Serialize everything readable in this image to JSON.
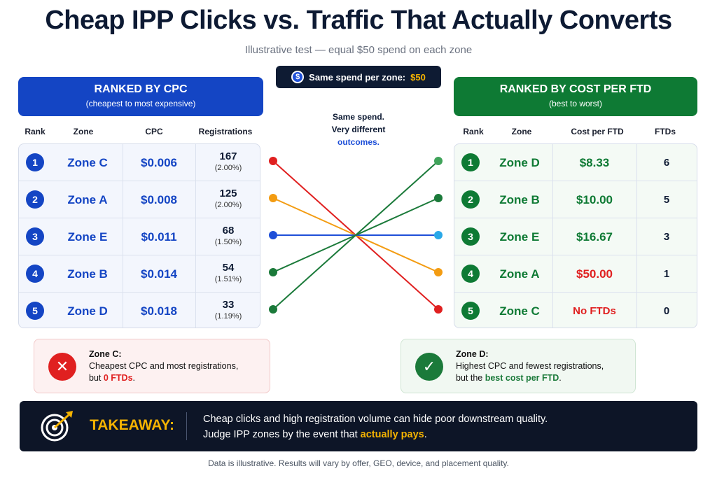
{
  "header": {
    "title": "Cheap IPP Clicks vs. Traffic That Actually Converts",
    "subtitle": "Illustrative test — equal $50 spend on each zone"
  },
  "spend_pill": {
    "label": "Same spend per zone:",
    "amount": "$50",
    "icon": "dollar-icon"
  },
  "middle_note": {
    "line1": "Same spend.",
    "line2": "Very different",
    "line3": "outcomes."
  },
  "left_panel": {
    "title": "RANKED BY CPC",
    "subtitle": "(cheapest to most expensive)",
    "columns": [
      "Rank",
      "Zone",
      "CPC",
      "Registrations"
    ],
    "rows": [
      {
        "rank": "1",
        "zone": "Zone C",
        "cpc": "$0.006",
        "regs": "167",
        "pct": "(2.00%)"
      },
      {
        "rank": "2",
        "zone": "Zone A",
        "cpc": "$0.008",
        "regs": "125",
        "pct": "(2.00%)"
      },
      {
        "rank": "3",
        "zone": "Zone E",
        "cpc": "$0.011",
        "regs": "68",
        "pct": "(1.50%)"
      },
      {
        "rank": "4",
        "zone": "Zone B",
        "cpc": "$0.014",
        "regs": "54",
        "pct": "(1.51%)"
      },
      {
        "rank": "5",
        "zone": "Zone D",
        "cpc": "$0.018",
        "regs": "33",
        "pct": "(1.19%)"
      }
    ]
  },
  "right_panel": {
    "title": "RANKED BY COST PER FTD",
    "subtitle": "(best to worst)",
    "columns": [
      "Rank",
      "Zone",
      "Cost per FTD",
      "FTDs"
    ],
    "rows": [
      {
        "rank": "1",
        "zone": "Zone D",
        "cost": "$8.33",
        "ftds": "6"
      },
      {
        "rank": "2",
        "zone": "Zone B",
        "cost": "$10.00",
        "ftds": "5"
      },
      {
        "rank": "3",
        "zone": "Zone E",
        "cost": "$16.67",
        "ftds": "3"
      },
      {
        "rank": "4",
        "zone": "Zone A",
        "cost": "$50.00",
        "ftds": "1"
      },
      {
        "rank": "5",
        "zone": "Zone C",
        "cost": "No FTDs",
        "ftds": "0"
      }
    ]
  },
  "connectors": [
    {
      "from_rank": 1,
      "to_rank": 5,
      "color": "#e02020"
    },
    {
      "from_rank": 2,
      "to_rank": 4,
      "color": "#f39c12"
    },
    {
      "from_rank": 3,
      "to_rank": 3,
      "color": "#1e4fd8",
      "end_color": "#29a8e8"
    },
    {
      "from_rank": 4,
      "to_rank": 2,
      "color": "#1b7a3a"
    },
    {
      "from_rank": 5,
      "to_rank": 1,
      "color": "#1b7a3a",
      "end_color": "#3fa35a"
    }
  ],
  "callouts": {
    "left": {
      "label": "Zone C:",
      "line1": "Cheapest CPC and most registrations,",
      "line2_pre": "but ",
      "line2_hl": "0 FTDs",
      "line2_post": ".",
      "icon": "x-circle-icon",
      "color": "#e02020"
    },
    "right": {
      "label": "Zone D:",
      "line1": "Highest CPC and fewest registrations,",
      "line2_pre": "but the ",
      "line2_hl": "best cost per FTD",
      "line2_post": ".",
      "icon": "check-circle-icon",
      "color": "#1b7a3a"
    }
  },
  "takeaway": {
    "label": "TAKEAWAY:",
    "line1": "Cheap clicks and high registration volume can hide poor downstream quality.",
    "line2_pre": "Judge IPP zones by the event that ",
    "line2_hl": "actually pays",
    "line2_post": ".",
    "icon": "target-arrow-icon"
  },
  "footer": "Data is illustrative. Results will vary by offer, GEO, device, and placement quality.",
  "colors": {
    "blue": "#1445c4",
    "green": "#0e7a34",
    "red": "#e02020",
    "gold": "#f5b301",
    "navy": "#0d1527"
  }
}
